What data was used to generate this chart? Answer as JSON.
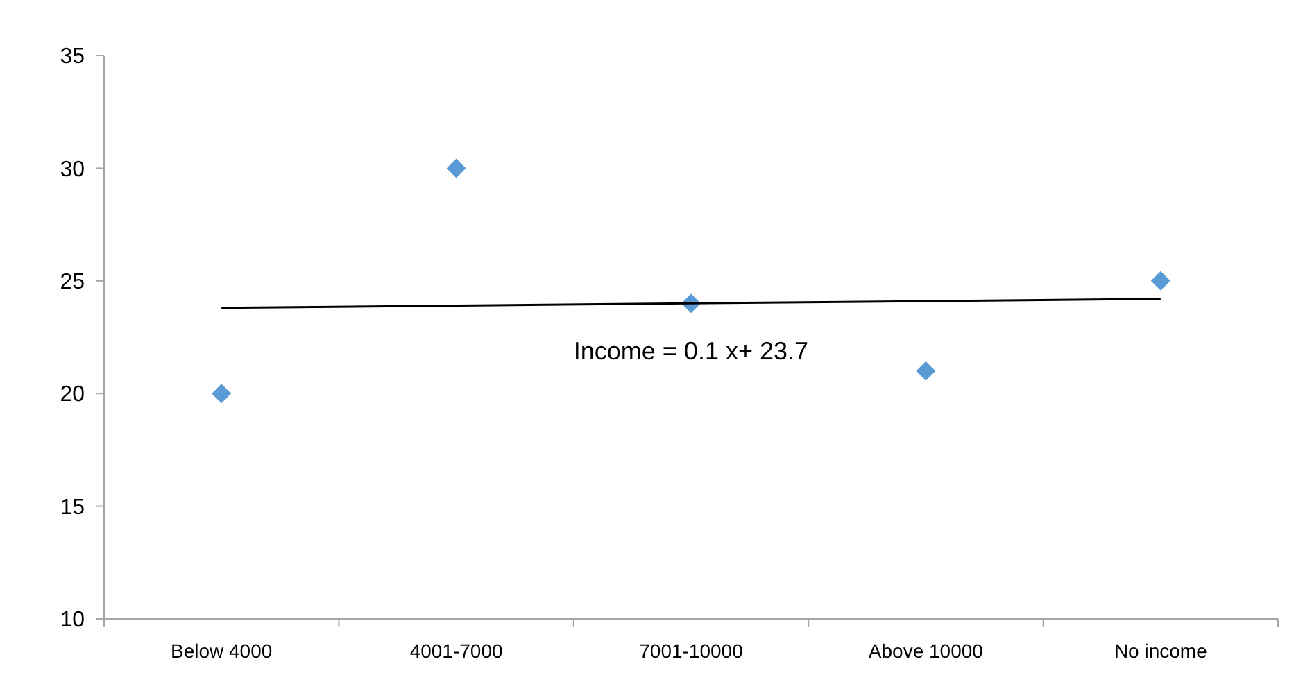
{
  "chart_data": {
    "type": "scatter",
    "categories": [
      "Below 4000",
      "4001-7000",
      "7001-10000",
      "Above 10000",
      "No income"
    ],
    "series": [
      {
        "color": "#5b9bd5",
        "marker": "diamond",
        "values": [
          20,
          30,
          24,
          21,
          25
        ]
      },
      {
        "type": "line",
        "color": "#000000",
        "x": [
          "Below 4000",
          "No income"
        ],
        "values": [
          23.8,
          24.2
        ]
      }
    ],
    "ylim": [
      10,
      35
    ],
    "yticks": [
      10,
      15,
      20,
      25,
      30,
      35
    ],
    "grid": false,
    "annotations": [
      "Income = 0.1 x+ 23.7"
    ]
  }
}
